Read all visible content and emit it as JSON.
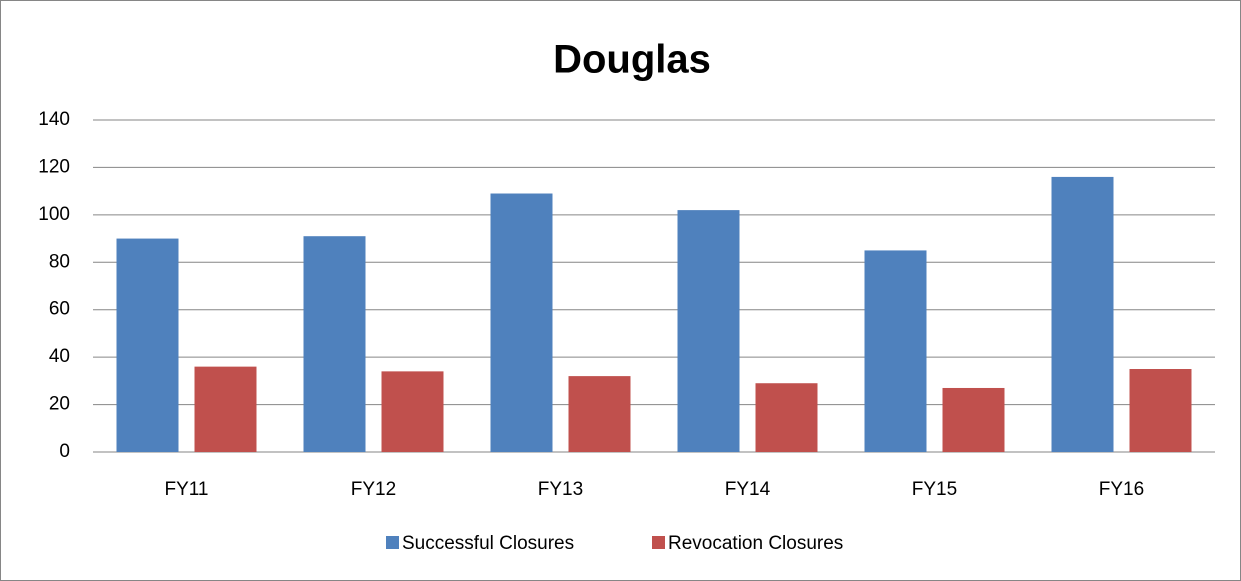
{
  "chart_data": {
    "type": "bar",
    "title": "Douglas",
    "categories": [
      "FY11",
      "FY12",
      "FY13",
      "FY14",
      "FY15",
      "FY16"
    ],
    "series": [
      {
        "name": "Successful Closures",
        "color": "#4f81bd",
        "values": [
          90,
          91,
          109,
          102,
          85,
          116
        ]
      },
      {
        "name": "Revocation Closures",
        "color": "#c0504d",
        "values": [
          36,
          34,
          32,
          29,
          27,
          35
        ]
      }
    ],
    "ylim": [
      0,
      140
    ],
    "yticks": [
      0,
      20,
      40,
      60,
      80,
      100,
      120,
      140
    ],
    "grid": true,
    "legend": "bottom"
  }
}
